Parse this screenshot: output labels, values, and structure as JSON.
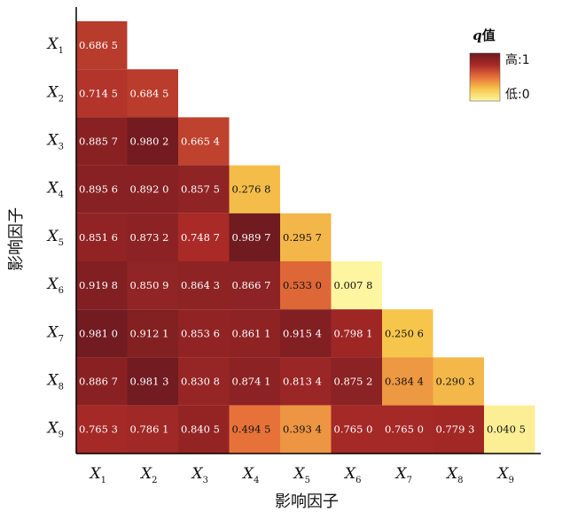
{
  "chart_data": {
    "type": "heatmap",
    "shape": "lower-triangular",
    "x_categories": [
      "X1",
      "X2",
      "X3",
      "X4",
      "X5",
      "X6",
      "X7",
      "X8",
      "X9"
    ],
    "y_categories": [
      "X1",
      "X2",
      "X3",
      "X4",
      "X5",
      "X6",
      "X7",
      "X8",
      "X9"
    ],
    "xlabel": "影响因子",
    "ylabel": "影响因子",
    "values": [
      [
        0.6865
      ],
      [
        0.7145,
        0.6845
      ],
      [
        0.8857,
        0.9802,
        0.6654
      ],
      [
        0.8956,
        0.892,
        0.8575,
        0.2768
      ],
      [
        0.8516,
        0.8732,
        0.7487,
        0.9897,
        0.2957
      ],
      [
        0.9198,
        0.8509,
        0.8643,
        0.8667,
        0.533,
        0.0078
      ],
      [
        0.981,
        0.9121,
        0.8536,
        0.8611,
        0.9154,
        0.7981,
        0.2506
      ],
      [
        0.8867,
        0.9813,
        0.8308,
        0.8741,
        0.8134,
        0.8752,
        0.3844,
        0.2903
      ],
      [
        0.7653,
        0.7861,
        0.8405,
        0.4945,
        0.3934,
        0.765,
        0.765,
        0.7793,
        0.0405
      ]
    ],
    "value_labels": [
      [
        "0.686 5"
      ],
      [
        "0.714 5",
        "0.684 5"
      ],
      [
        "0.885 7",
        "0.980 2",
        "0.665 4"
      ],
      [
        "0.895 6",
        "0.892 0",
        "0.857 5",
        "0.276 8"
      ],
      [
        "0.851 6",
        "0.873 2",
        "0.748 7",
        "0.989 7",
        "0.295 7"
      ],
      [
        "0.919 8",
        "0.850 9",
        "0.864 3",
        "0.866 7",
        "0.533 0",
        "0.007 8"
      ],
      [
        "0.981 0",
        "0.912 1",
        "0.853 6",
        "0.861 1",
        "0.915 4",
        "0.798 1",
        "0.250 6"
      ],
      [
        "0.886 7",
        "0.981 3",
        "0.830 8",
        "0.874 1",
        "0.813 4",
        "0.875 2",
        "0.384 4",
        "0.290 3"
      ],
      [
        "0.765 3",
        "0.786 1",
        "0.840 5",
        "0.494 5",
        "0.393 4",
        "0.765 0",
        "0.765 0",
        "0.779 3",
        "0.040 5"
      ]
    ],
    "colorbar": {
      "title_var": "q",
      "title_suffix": "值",
      "high_label": "高:1",
      "low_label": "低:0",
      "range": [
        0,
        1
      ],
      "colors": [
        "#fdf6a3",
        "#f6c64c",
        "#e6703a",
        "#a92a27",
        "#6e1a20"
      ],
      "placement": "top-right"
    },
    "grid": false
  }
}
